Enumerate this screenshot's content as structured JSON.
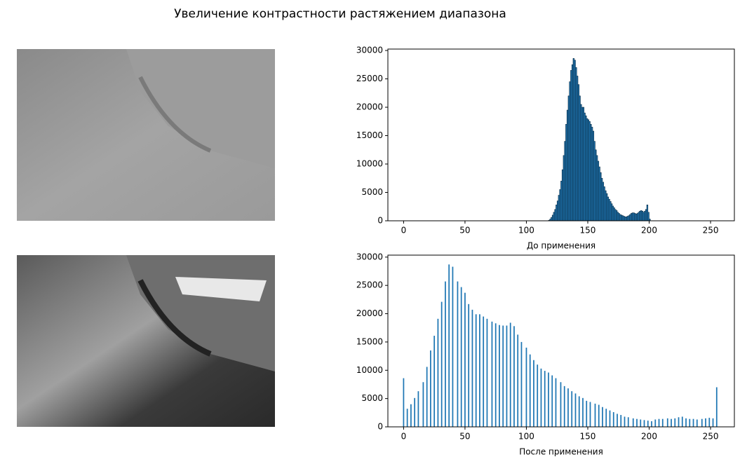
{
  "title": "Увеличение контрастности растяжением диапазона",
  "chart_data": [
    {
      "type": "histogram",
      "xlabel": "До применения",
      "color": "#1f77b4",
      "edgecolor": "#0b2a40",
      "bins": [
        118,
        119,
        120,
        121,
        122,
        123,
        124,
        125,
        126,
        127,
        128,
        129,
        130,
        131,
        132,
        133,
        134,
        135,
        136,
        137,
        138,
        139,
        140,
        141,
        142,
        143,
        144,
        145,
        146,
        147,
        148,
        149,
        150,
        151,
        152,
        153,
        154,
        155,
        156,
        157,
        158,
        159,
        160,
        161,
        162,
        163,
        164,
        165,
        166,
        167,
        168,
        169,
        170,
        171,
        172,
        173,
        174,
        175,
        176,
        177,
        178,
        179,
        180,
        181,
        182,
        183,
        184,
        185,
        186,
        187,
        188,
        189,
        190,
        191,
        192,
        193,
        194,
        195,
        196,
        197,
        198,
        199,
        200,
        201
      ],
      "values": [
        100,
        300,
        600,
        1000,
        1500,
        2000,
        2800,
        3500,
        4500,
        5500,
        7000,
        9000,
        11500,
        14000,
        17000,
        19500,
        22000,
        24500,
        26500,
        27500,
        28600,
        28300,
        27000,
        25500,
        24000,
        22000,
        20500,
        20000,
        20000,
        19000,
        18500,
        18000,
        17800,
        17500,
        17000,
        16500,
        15800,
        14000,
        12500,
        11500,
        10500,
        9500,
        8500,
        7500,
        6800,
        6000,
        5300,
        4800,
        4200,
        3800,
        3400,
        3000,
        2600,
        2300,
        2000,
        1800,
        1500,
        1300,
        1100,
        1000,
        900,
        800,
        700,
        700,
        800,
        900,
        1100,
        1300,
        1400,
        1400,
        1300,
        1200,
        1300,
        1500,
        1700,
        1800,
        1700,
        1500,
        1700,
        2000,
        2800,
        1500,
        300
      ],
      "xlim": [
        -12.8,
        269.4
      ],
      "xticks": [
        0,
        50,
        100,
        150,
        200,
        250
      ],
      "ylim": [
        0,
        30250
      ],
      "yticks": [
        0,
        5000,
        10000,
        15000,
        20000,
        25000,
        30000
      ]
    },
    {
      "type": "bar",
      "xlabel": "После применения",
      "color": "#1f77b4",
      "x": [
        0,
        3,
        6,
        9,
        12,
        16,
        19,
        22,
        25,
        28,
        31,
        34,
        37,
        40,
        44,
        47,
        50,
        53,
        56,
        59,
        62,
        65,
        68,
        72,
        75,
        78,
        81,
        84,
        87,
        90,
        93,
        96,
        100,
        103,
        106,
        109,
        112,
        115,
        118,
        121,
        124,
        128,
        131,
        134,
        137,
        140,
        143,
        146,
        149,
        152,
        156,
        159,
        162,
        165,
        168,
        171,
        174,
        177,
        180,
        183,
        187,
        190,
        193,
        196,
        199,
        202,
        205,
        208,
        211,
        215,
        218,
        221,
        224,
        227,
        230,
        233,
        236,
        239,
        243,
        246,
        249,
        252,
        255
      ],
      "values": [
        8600,
        3200,
        4000,
        5100,
        6300,
        7900,
        10600,
        13500,
        16100,
        19100,
        22100,
        25700,
        28700,
        28300,
        25700,
        24700,
        23700,
        21700,
        20700,
        19900,
        19900,
        19500,
        19100,
        18600,
        18300,
        18000,
        17900,
        17900,
        18400,
        17800,
        16300,
        15000,
        14000,
        12800,
        11800,
        11000,
        10300,
        9900,
        9600,
        9100,
        8600,
        7900,
        7200,
        6800,
        6300,
        5900,
        5400,
        5100,
        4600,
        4400,
        4100,
        3900,
        3500,
        3200,
        2900,
        2600,
        2300,
        2100,
        1800,
        1700,
        1500,
        1400,
        1300,
        1200,
        1100,
        1000,
        1300,
        1400,
        1400,
        1500,
        1400,
        1500,
        1700,
        1800,
        1500,
        1400,
        1400,
        1300,
        1400,
        1500,
        1600,
        1500,
        7000
      ],
      "xlim": [
        -12.8,
        269.4
      ],
      "xticks": [
        0,
        50,
        100,
        150,
        200,
        250
      ],
      "ylim": [
        0,
        30350
      ],
      "yticks": [
        0,
        5000,
        10000,
        15000,
        20000,
        25000,
        30000
      ]
    }
  ]
}
